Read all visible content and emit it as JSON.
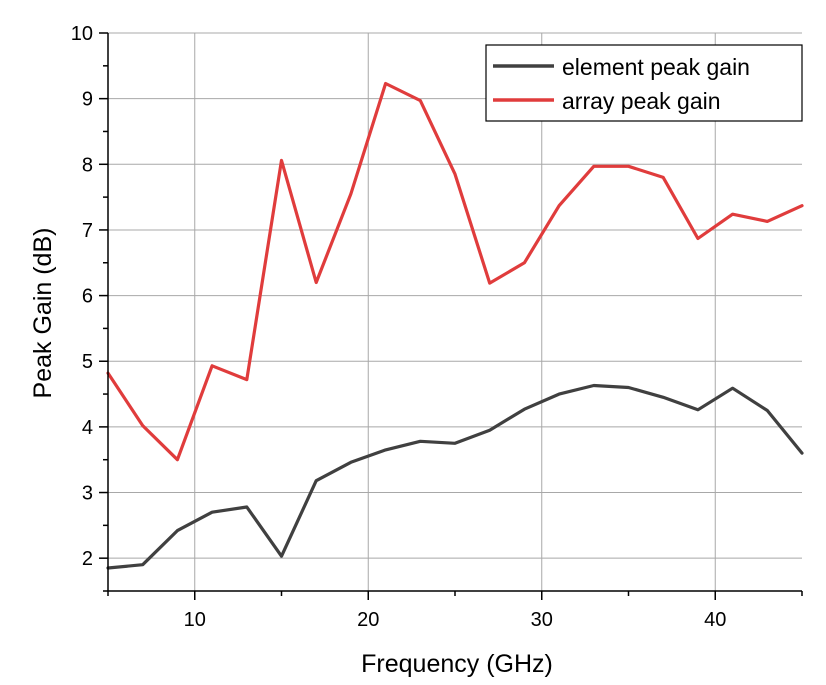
{
  "chart_data": {
    "type": "line",
    "xlabel": "Frequency (GHz)",
    "ylabel": "Peak Gain (dB)",
    "xlim": [
      5,
      45
    ],
    "ylim": [
      1.5,
      10
    ],
    "xticks": [
      10,
      20,
      30,
      40
    ],
    "yticks": [
      2,
      3,
      4,
      5,
      6,
      7,
      8,
      9,
      10
    ],
    "grid": true,
    "legend_position": "top-right",
    "series": [
      {
        "name": "element peak gain",
        "color": "#404040",
        "x": [
          5,
          7,
          9,
          11,
          13,
          15,
          17,
          19,
          21,
          23,
          25,
          27,
          29,
          31,
          33,
          35,
          37,
          39,
          41,
          43,
          45
        ],
        "y": [
          1.85,
          1.9,
          2.42,
          2.7,
          2.78,
          2.03,
          3.18,
          3.46,
          3.65,
          3.78,
          3.75,
          3.95,
          4.27,
          4.5,
          4.63,
          4.6,
          4.45,
          4.26,
          4.59,
          4.25,
          3.6
        ]
      },
      {
        "name": "array peak gain",
        "color": "#e03c3c",
        "x": [
          5,
          7,
          9,
          11,
          13,
          15,
          17,
          19,
          21,
          23,
          25,
          27,
          29,
          31,
          33,
          35,
          37,
          39,
          41,
          43,
          45
        ],
        "y": [
          4.82,
          4.02,
          3.5,
          4.93,
          4.72,
          8.06,
          6.2,
          7.55,
          9.23,
          8.97,
          7.85,
          6.19,
          6.5,
          7.37,
          7.97,
          7.97,
          7.8,
          6.87,
          7.24,
          7.13,
          7.37
        ]
      }
    ]
  }
}
